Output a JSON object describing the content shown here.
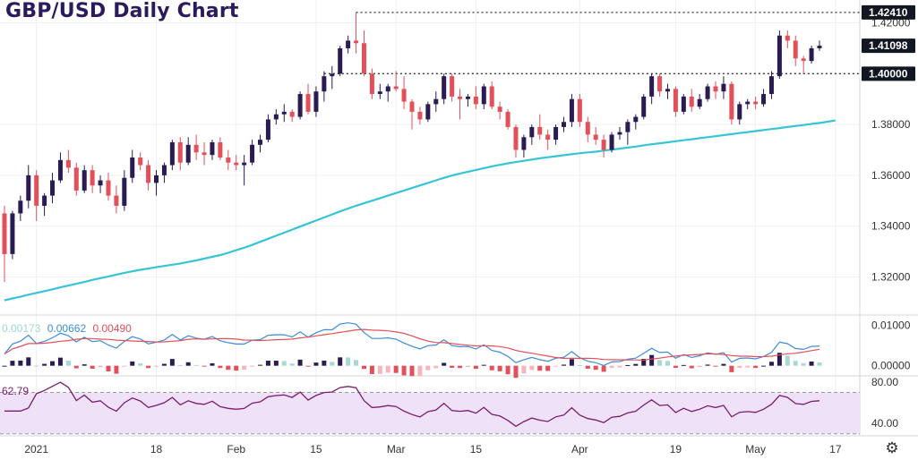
{
  "title": "GBP/USD Daily Chart",
  "chart_data": {
    "type": "candlestick",
    "title": "GBP/USD Daily Chart",
    "price_axis": {
      "range": [
        1.305,
        1.429
      ],
      "ticks": [
        "1.42000",
        "1.38000",
        "1.36000",
        "1.34000",
        "1.32000"
      ],
      "ticks_values": [
        1.42,
        1.38,
        1.36,
        1.34,
        1.32
      ],
      "badges": [
        {
          "label": "1.42410",
          "value": 1.4241,
          "dotted_line": true
        },
        {
          "label": "1.41098",
          "value": 1.41098,
          "dotted_line": false
        },
        {
          "label": "1.40000",
          "value": 1.4,
          "dotted_line": true
        }
      ]
    },
    "time_axis": {
      "labels": [
        "2021",
        "18",
        "Feb",
        "15",
        "Mar",
        "15",
        "Apr",
        "19",
        "May",
        "17"
      ],
      "label_bar_index": [
        4,
        19,
        29,
        39,
        49,
        59,
        72,
        84,
        94,
        104
      ]
    },
    "colors": {
      "up": "#2a1b52",
      "down": "#e3505a",
      "ma": "#36c4d6",
      "macd": "#3c8ddb",
      "signal": "#e3505a",
      "rsi": "#7b1c6e",
      "rsi_band": "#efe2f8"
    },
    "candles": [
      [
        1.345,
        1.348,
        1.318,
        1.329
      ],
      [
        1.329,
        1.346,
        1.327,
        1.345
      ],
      [
        1.345,
        1.352,
        1.342,
        1.35
      ],
      [
        1.35,
        1.364,
        1.347,
        1.36
      ],
      [
        1.36,
        1.362,
        1.342,
        1.348
      ],
      [
        1.348,
        1.353,
        1.344,
        1.352
      ],
      [
        1.352,
        1.361,
        1.349,
        1.358
      ],
      [
        1.358,
        1.369,
        1.357,
        1.366
      ],
      [
        1.366,
        1.37,
        1.361,
        1.363
      ],
      [
        1.363,
        1.365,
        1.352,
        1.354
      ],
      [
        1.354,
        1.364,
        1.353,
        1.362
      ],
      [
        1.362,
        1.364,
        1.353,
        1.356
      ],
      [
        1.356,
        1.36,
        1.353,
        1.358
      ],
      [
        1.358,
        1.361,
        1.35,
        1.352
      ],
      [
        1.352,
        1.356,
        1.345,
        1.348
      ],
      [
        1.348,
        1.362,
        1.346,
        1.359
      ],
      [
        1.359,
        1.37,
        1.357,
        1.367
      ],
      [
        1.367,
        1.369,
        1.362,
        1.364
      ],
      [
        1.364,
        1.366,
        1.354,
        1.357
      ],
      [
        1.357,
        1.362,
        1.352,
        1.36
      ],
      [
        1.36,
        1.365,
        1.357,
        1.364
      ],
      [
        1.364,
        1.374,
        1.362,
        1.373
      ],
      [
        1.373,
        1.375,
        1.362,
        1.365
      ],
      [
        1.365,
        1.375,
        1.364,
        1.372
      ],
      [
        1.372,
        1.376,
        1.366,
        1.369
      ],
      [
        1.369,
        1.373,
        1.364,
        1.368
      ],
      [
        1.368,
        1.374,
        1.366,
        1.373
      ],
      [
        1.373,
        1.375,
        1.366,
        1.367
      ],
      [
        1.367,
        1.37,
        1.362,
        1.365
      ],
      [
        1.365,
        1.368,
        1.362,
        1.364
      ],
      [
        1.364,
        1.368,
        1.356,
        1.365
      ],
      [
        1.365,
        1.374,
        1.364,
        1.372
      ],
      [
        1.372,
        1.376,
        1.369,
        1.374
      ],
      [
        1.374,
        1.384,
        1.373,
        1.382
      ],
      [
        1.382,
        1.386,
        1.38,
        1.384
      ],
      [
        1.384,
        1.388,
        1.381,
        1.385
      ],
      [
        1.385,
        1.386,
        1.381,
        1.383
      ],
      [
        1.383,
        1.393,
        1.382,
        1.392
      ],
      [
        1.392,
        1.396,
        1.384,
        1.385
      ],
      [
        1.385,
        1.395,
        1.383,
        1.393
      ],
      [
        1.393,
        1.401,
        1.389,
        1.399
      ],
      [
        1.399,
        1.403,
        1.394,
        1.4
      ],
      [
        1.4,
        1.411,
        1.399,
        1.41
      ],
      [
        1.41,
        1.415,
        1.408,
        1.413
      ],
      [
        1.413,
        1.4241,
        1.408,
        1.412
      ],
      [
        1.412,
        1.417,
        1.399,
        1.4
      ],
      [
        1.4,
        1.402,
        1.39,
        1.392
      ],
      [
        1.392,
        1.396,
        1.39,
        1.393
      ],
      [
        1.393,
        1.396,
        1.389,
        1.395
      ],
      [
        1.395,
        1.401,
        1.393,
        1.394
      ],
      [
        1.394,
        1.399,
        1.386,
        1.389
      ],
      [
        1.389,
        1.39,
        1.378,
        1.385
      ],
      [
        1.385,
        1.387,
        1.38,
        1.382
      ],
      [
        1.382,
        1.389,
        1.381,
        1.388
      ],
      [
        1.388,
        1.393,
        1.385,
        1.39
      ],
      [
        1.39,
        1.4,
        1.388,
        1.399
      ],
      [
        1.399,
        1.4,
        1.389,
        1.391
      ],
      [
        1.391,
        1.394,
        1.382,
        1.39
      ],
      [
        1.39,
        1.392,
        1.387,
        1.391
      ],
      [
        1.391,
        1.395,
        1.386,
        1.388
      ],
      [
        1.388,
        1.396,
        1.386,
        1.395
      ],
      [
        1.395,
        1.397,
        1.386,
        1.387
      ],
      [
        1.387,
        1.389,
        1.382,
        1.385
      ],
      [
        1.385,
        1.386,
        1.378,
        1.379
      ],
      [
        1.379,
        1.38,
        1.367,
        1.37
      ],
      [
        1.37,
        1.376,
        1.367,
        1.375
      ],
      [
        1.375,
        1.38,
        1.372,
        1.379
      ],
      [
        1.379,
        1.384,
        1.374,
        1.376
      ],
      [
        1.376,
        1.378,
        1.37,
        1.374
      ],
      [
        1.374,
        1.38,
        1.372,
        1.379
      ],
      [
        1.379,
        1.383,
        1.377,
        1.381
      ],
      [
        1.381,
        1.392,
        1.379,
        1.39
      ],
      [
        1.39,
        1.392,
        1.379,
        1.381
      ],
      [
        1.381,
        1.383,
        1.373,
        1.376
      ],
      [
        1.376,
        1.379,
        1.372,
        1.374
      ],
      [
        1.374,
        1.376,
        1.367,
        1.37
      ],
      [
        1.37,
        1.377,
        1.369,
        1.376
      ],
      [
        1.376,
        1.379,
        1.374,
        1.377
      ],
      [
        1.377,
        1.382,
        1.372,
        1.381
      ],
      [
        1.381,
        1.384,
        1.378,
        1.383
      ],
      [
        1.383,
        1.392,
        1.382,
        1.391
      ],
      [
        1.391,
        1.4,
        1.388,
        1.399
      ],
      [
        1.399,
        1.4,
        1.391,
        1.393
      ],
      [
        1.393,
        1.396,
        1.39,
        1.394
      ],
      [
        1.394,
        1.395,
        1.383,
        1.385
      ],
      [
        1.385,
        1.392,
        1.384,
        1.391
      ],
      [
        1.391,
        1.394,
        1.385,
        1.387
      ],
      [
        1.387,
        1.392,
        1.386,
        1.39
      ],
      [
        1.39,
        1.396,
        1.389,
        1.395
      ],
      [
        1.395,
        1.397,
        1.39,
        1.393
      ],
      [
        1.393,
        1.399,
        1.39,
        1.396
      ],
      [
        1.396,
        1.397,
        1.38,
        1.382
      ],
      [
        1.382,
        1.389,
        1.38,
        1.388
      ],
      [
        1.388,
        1.39,
        1.386,
        1.389
      ],
      [
        1.389,
        1.391,
        1.386,
        1.388
      ],
      [
        1.388,
        1.394,
        1.387,
        1.392
      ],
      [
        1.392,
        1.401,
        1.39,
        1.399
      ],
      [
        1.399,
        1.417,
        1.398,
        1.415
      ],
      [
        1.415,
        1.417,
        1.41,
        1.413
      ],
      [
        1.413,
        1.415,
        1.403,
        1.406
      ],
      [
        1.406,
        1.407,
        1.4,
        1.405
      ],
      [
        1.405,
        1.411,
        1.404,
        1.41
      ],
      [
        1.41,
        1.413,
        1.409,
        1.411
      ]
    ],
    "moving_average": [
      1.3108,
      1.3115,
      1.3122,
      1.313,
      1.3137,
      1.3144,
      1.3151,
      1.3159,
      1.3166,
      1.3173,
      1.318,
      1.3188,
      1.3195,
      1.3202,
      1.3209,
      1.3216,
      1.3222,
      1.3228,
      1.3233,
      1.3238,
      1.3243,
      1.3248,
      1.3253,
      1.3259,
      1.3265,
      1.3272,
      1.3279,
      1.3286,
      1.3295,
      1.3305,
      1.3315,
      1.3326,
      1.3338,
      1.335,
      1.3362,
      1.3374,
      1.3386,
      1.3398,
      1.341,
      1.3422,
      1.3434,
      1.3446,
      1.3458,
      1.3469,
      1.348,
      1.349,
      1.35,
      1.351,
      1.352,
      1.353,
      1.354,
      1.355,
      1.356,
      1.357,
      1.358,
      1.359,
      1.3599,
      1.3607,
      1.3614,
      1.3621,
      1.3628,
      1.3635,
      1.3641,
      1.3647,
      1.3652,
      1.3657,
      1.3662,
      1.3667,
      1.3671,
      1.3675,
      1.3679,
      1.3683,
      1.3687,
      1.369,
      1.3693,
      1.3697,
      1.3701,
      1.3705,
      1.3709,
      1.3713,
      1.3718,
      1.3722,
      1.3726,
      1.373,
      1.3734,
      1.3738,
      1.3742,
      1.3746,
      1.375,
      1.3754,
      1.3758,
      1.3762,
      1.3766,
      1.377,
      1.3774,
      1.3778,
      1.3782,
      1.3786,
      1.379,
      1.3794,
      1.3798,
      1.3802,
      1.3806,
      1.3811,
      1.3816
    ],
    "macd_panel": {
      "legend": [
        "0.00173",
        "0.00662",
        "0.00490"
      ],
      "axis_ticks": [
        "0.01000",
        "0.00000"
      ],
      "range": [
        -0.0025,
        0.0125
      ]
    },
    "rsi_panel": {
      "legend": "62.79",
      "axis_ticks": [
        "80.00",
        "40.00"
      ],
      "range": [
        28,
        86
      ],
      "band": [
        30,
        70
      ]
    }
  },
  "toolbar": {
    "settings_icon": "gear-icon"
  }
}
